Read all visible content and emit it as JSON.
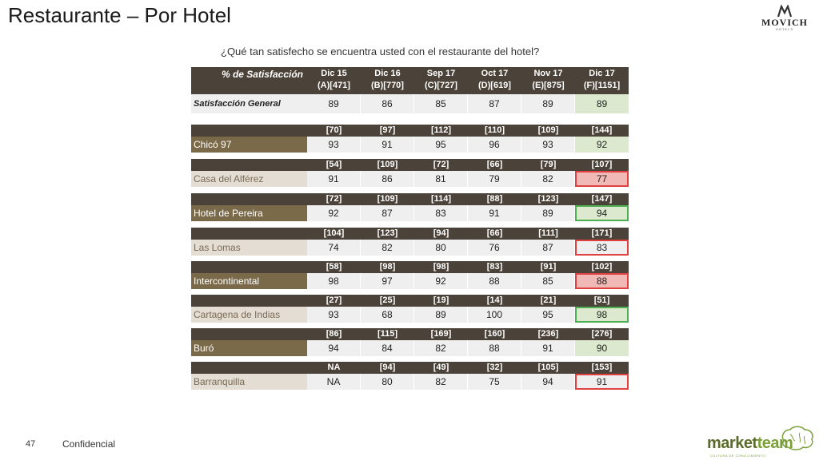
{
  "title": "Restaurante – Por Hotel",
  "brand": {
    "logo_text": "MOVICH",
    "logo_sub": "HOTELS"
  },
  "question": "¿Qué tan satisfecho se encuentra usted con el restaurante del hotel?",
  "header": {
    "label": "% de Satisfacción",
    "columns": [
      {
        "top": "Dic 15",
        "bottom": "(A)[471]"
      },
      {
        "top": "Dic 16",
        "bottom": "(B)[770]"
      },
      {
        "top": "Sep 17",
        "bottom": "(C)[727]"
      },
      {
        "top": "Oct 17",
        "bottom": "(D)[619]"
      },
      {
        "top": "Nov 17",
        "bottom": "(E)[875]"
      },
      {
        "top": "Dic 17",
        "bottom": "(F)[1151]"
      }
    ]
  },
  "general": {
    "label": "Satisfacción General",
    "values": [
      "89",
      "86",
      "85",
      "87",
      "89",
      "89"
    ]
  },
  "hotels": [
    {
      "name": "Chicó 97",
      "bases": [
        "[70]",
        "[97]",
        "[112]",
        "[110]",
        "[109]",
        "[144]"
      ],
      "values": [
        "93",
        "91",
        "95",
        "96",
        "93",
        "92"
      ]
    },
    {
      "name": "Casa del Alférez",
      "bases": [
        "[54]",
        "[109]",
        "[72]",
        "[66]",
        "[79]",
        "[107]"
      ],
      "values": [
        "91",
        "86",
        "81",
        "79",
        "82",
        "77"
      ]
    },
    {
      "name": "Hotel de Pereira",
      "bases": [
        "[72]",
        "[109]",
        "[114]",
        "[88]",
        "[123]",
        "[147]"
      ],
      "values": [
        "92",
        "87",
        "83",
        "91",
        "89",
        "94"
      ]
    },
    {
      "name": "Las Lomas",
      "bases": [
        "[104]",
        "[123]",
        "[94]",
        "[66]",
        "[111]",
        "[171]"
      ],
      "values": [
        "74",
        "82",
        "80",
        "76",
        "87",
        "83"
      ]
    },
    {
      "name": "Intercontinental",
      "bases": [
        "[58]",
        "[98]",
        "[98]",
        "[83]",
        "[91]",
        "[102]"
      ],
      "values": [
        "98",
        "97",
        "92",
        "88",
        "85",
        "88"
      ]
    },
    {
      "name": "Cartagena de Indias",
      "bases": [
        "[27]",
        "[25]",
        "[19]",
        "[14]",
        "[21]",
        "[51]"
      ],
      "values": [
        "93",
        "68",
        "89",
        "100",
        "95",
        "98"
      ]
    },
    {
      "name": "Buró",
      "bases": [
        "[86]",
        "[115]",
        "[169]",
        "[160]",
        "[236]",
        "[276]"
      ],
      "values": [
        "94",
        "84",
        "82",
        "88",
        "91",
        "90"
      ]
    },
    {
      "name": "Barranquilla",
      "bases": [
        "NA",
        "[94]",
        "[49]",
        "[32]",
        "[105]",
        "[153]"
      ],
      "values": [
        "NA",
        "80",
        "82",
        "75",
        "94",
        "91"
      ]
    }
  ],
  "footer": {
    "page": "47",
    "label": "Confidencial",
    "logo_a": "market",
    "logo_b": "team",
    "logo_sub": "CULTURA DE CONOCIMIENTO"
  }
}
